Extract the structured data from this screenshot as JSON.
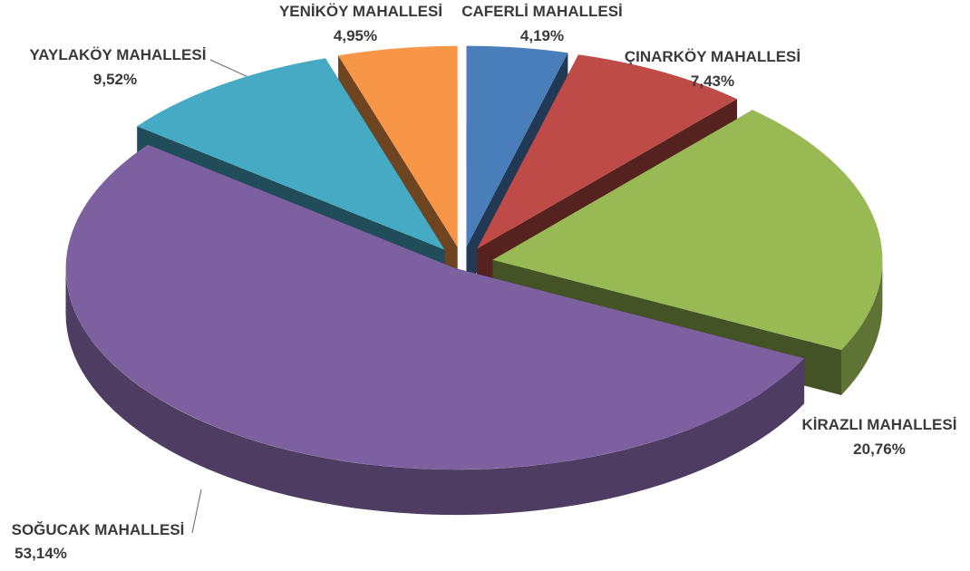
{
  "chart_data": {
    "type": "pie",
    "categories": [
      "CAFERLİ MAHALLESİ",
      "ÇINARKÖY MAHALLESİ",
      "KİRAZLI MAHALLESİ",
      "SOĞUCAK MAHALLESİ",
      "YAYLAKÖY MAHALLESİ",
      "YENİKÖY MAHALLESİ"
    ],
    "values": [
      4.19,
      7.43,
      20.76,
      53.14,
      9.52,
      4.95
    ],
    "value_labels": [
      "4,19%",
      "7,43%",
      "20,76%",
      "53,14%",
      "9,52%",
      "4,95%"
    ],
    "colors": [
      "#4a7ebb",
      "#be4b48",
      "#98b954",
      "#7d60a0",
      "#46aac5",
      "#f79646"
    ]
  }
}
